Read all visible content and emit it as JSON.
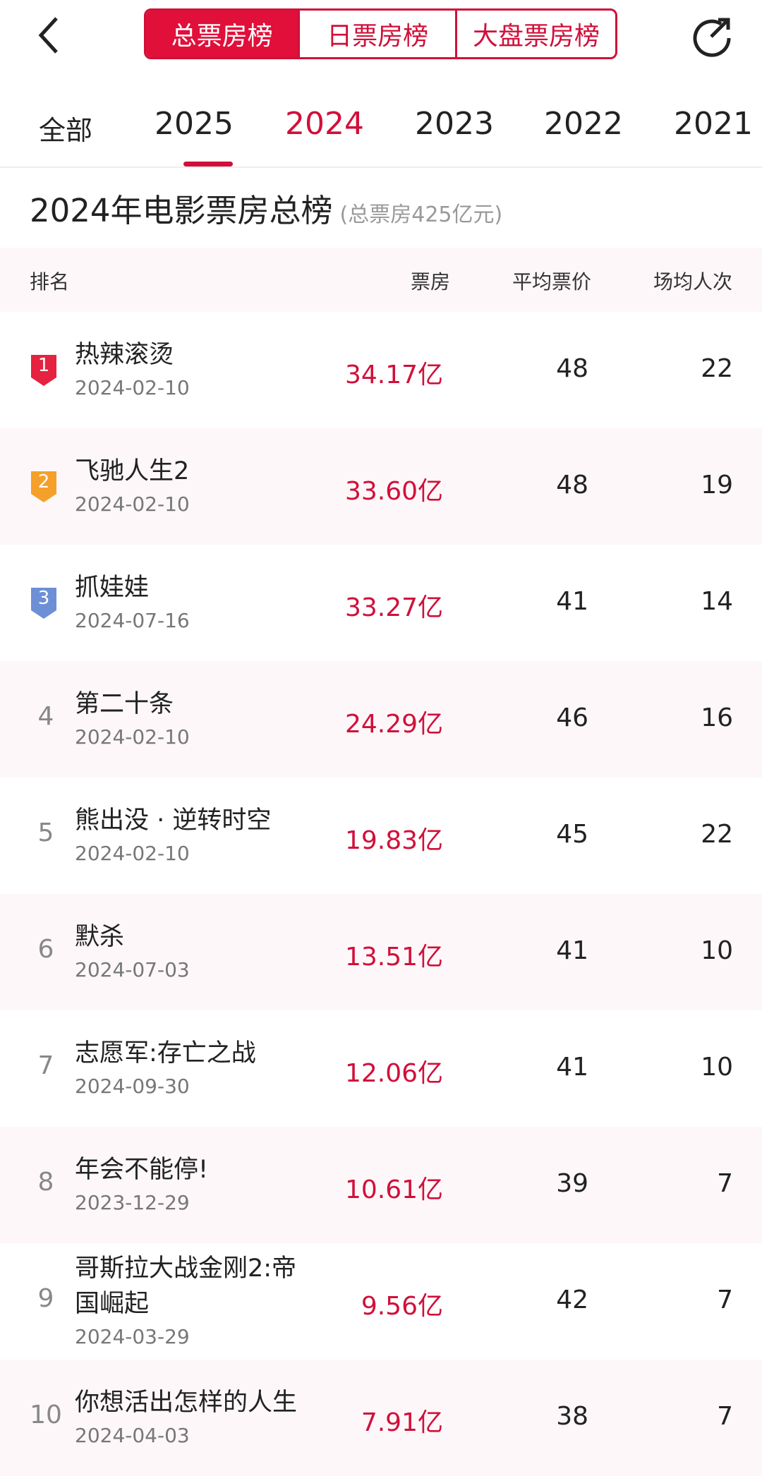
{
  "tabs": [
    "总票房榜",
    "日票房榜",
    "大盘票房榜"
  ],
  "years": [
    "全部",
    "2025",
    "2024",
    "2023",
    "2022",
    "2021"
  ],
  "title": "2024年电影票房总榜",
  "subtitle": "(总票房425亿元)",
  "table": {
    "header": [
      "排名",
      "票房",
      "平均票价",
      "场均人次"
    ],
    "rows": [
      [
        "1",
        "热辣滚烫",
        "2024-02-10",
        "34.17亿",
        "48",
        "22"
      ],
      [
        "2",
        "飞驰人生2",
        "2024-02-10",
        "33.60亿",
        "48",
        "19"
      ],
      [
        "3",
        "抓娃娃",
        "2024-07-16",
        "33.27亿",
        "41",
        "14"
      ],
      [
        "4",
        "第二十条",
        "2024-02-10",
        "24.29亿",
        "46",
        "16"
      ],
      [
        "5",
        "熊出没 · 逆转时空",
        "2024-02-10",
        "19.83亿",
        "45",
        "22"
      ],
      [
        "6",
        "默杀",
        "2024-07-03",
        "13.51亿",
        "41",
        "10"
      ],
      [
        "7",
        "志愿军:存亡之战",
        "2024-09-30",
        "12.06亿",
        "41",
        "10"
      ],
      [
        "8",
        "年会不能停!",
        "2023-12-29",
        "10.61亿",
        "39",
        "7"
      ],
      [
        "9",
        "哥斯拉大战金刚2:帝国崛起",
        "2024-03-29",
        "9.56亿",
        "42",
        "7"
      ],
      [
        "10",
        "你想活出怎样的人生",
        "2024-04-03",
        "7.91亿",
        "38",
        "7"
      ]
    ]
  }
}
